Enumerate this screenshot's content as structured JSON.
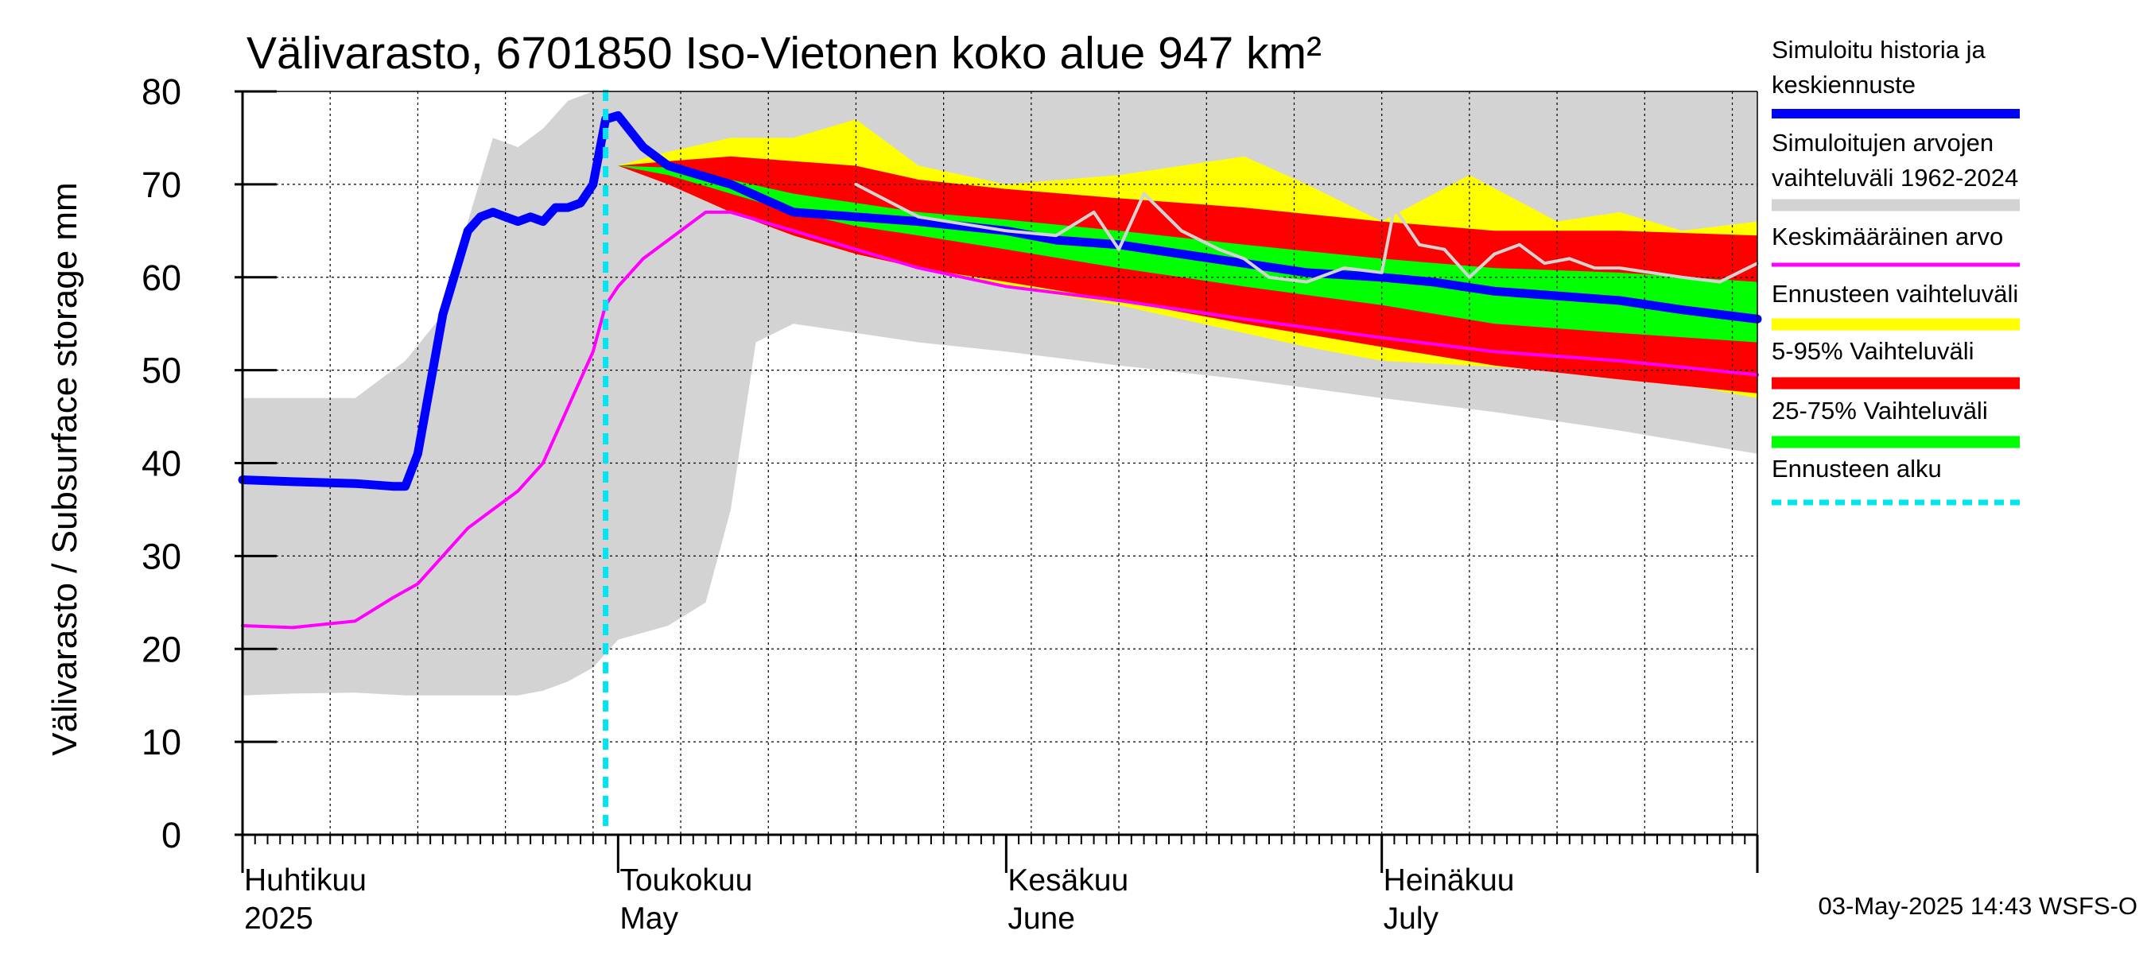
{
  "chart_data": {
    "type": "area",
    "title": "Välivarasto, 6701850 Iso-Vietonen koko alue 947 km²",
    "ylabel": "Välivarasto / Subsurface storage  mm",
    "ylim": [
      0,
      80
    ],
    "yticks": [
      0,
      10,
      20,
      30,
      40,
      50,
      60,
      70,
      80
    ],
    "xlim": [
      "2025-04-01",
      "2025-07-31"
    ],
    "grid": true,
    "legend_position": "right",
    "forecast_start": "2025-04-30",
    "x_month_labels": [
      {
        "date": "2025-04-01",
        "fi": "Huhtikuu",
        "en": "2025"
      },
      {
        "date": "2025-05-01",
        "fi": "Toukokuu",
        "en": "May"
      },
      {
        "date": "2025-06-01",
        "fi": "Kesäkuu",
        "en": "June"
      },
      {
        "date": "2025-07-01",
        "fi": "Heinäkuu",
        "en": "July"
      }
    ],
    "legend": [
      {
        "key": "sim",
        "label": [
          "Simuloitu historia ja",
          "keskiennuste"
        ],
        "color": "#0000ff",
        "style": "line"
      },
      {
        "key": "range",
        "label": [
          "Simuloitujen arvojen",
          "vaihteluväli 1962-2024"
        ],
        "color": "#d3d3d3",
        "style": "band"
      },
      {
        "key": "mean",
        "label": [
          "Keskimääräinen arvo"
        ],
        "color": "#ff00ff",
        "style": "thin"
      },
      {
        "key": "ens",
        "label": [
          "Ennusteen vaihteluväli"
        ],
        "color": "#ffff00",
        "style": "band"
      },
      {
        "key": "p5_95",
        "label": [
          "5-95% Vaihteluväli"
        ],
        "color": "#ff0000",
        "style": "band"
      },
      {
        "key": "p25_75",
        "label": [
          "25-75% Vaihteluväli"
        ],
        "color": "#00ff00",
        "style": "band"
      },
      {
        "key": "fstart",
        "label": [
          "Ennusteen alku"
        ],
        "color": "#00e5ee",
        "style": "dashed"
      }
    ],
    "series": [
      {
        "name": "Simuloitujen arvojen vaihteluväli 1962-2024",
        "kind": "band",
        "x": [
          "2025-04-01",
          "2025-04-05",
          "2025-04-10",
          "2025-04-14",
          "2025-04-17",
          "2025-04-19",
          "2025-04-21",
          "2025-04-23",
          "2025-04-25",
          "2025-04-27",
          "2025-04-29",
          "2025-05-01",
          "2025-05-05",
          "2025-05-08",
          "2025-05-10",
          "2025-05-12",
          "2025-05-15",
          "2025-05-20",
          "2025-05-25",
          "2025-06-01",
          "2025-06-10",
          "2025-06-20",
          "2025-07-01",
          "2025-07-10",
          "2025-07-20",
          "2025-07-31"
        ],
        "low": [
          15,
          15.2,
          15.3,
          15,
          15,
          15,
          15,
          15,
          15.5,
          16.5,
          18,
          21,
          22.5,
          25,
          35,
          53,
          55,
          54,
          53,
          52,
          50.5,
          49,
          47,
          45.5,
          43.5,
          41
        ],
        "high": [
          47,
          47,
          47,
          51,
          56,
          66,
          75,
          74,
          76,
          79,
          80,
          80,
          80,
          80,
          80,
          80,
          80,
          80,
          80,
          80,
          80,
          80,
          80,
          80,
          80,
          80
        ]
      },
      {
        "name": "Ennusteen vaihteluväli",
        "kind": "band",
        "x": [
          "2025-05-01",
          "2025-05-05",
          "2025-05-10",
          "2025-05-15",
          "2025-05-20",
          "2025-05-25",
          "2025-06-01",
          "2025-06-10",
          "2025-06-20",
          "2025-06-25",
          "2025-07-01",
          "2025-07-08",
          "2025-07-15",
          "2025-07-20",
          "2025-07-25",
          "2025-07-31"
        ],
        "low": [
          72,
          70.5,
          67,
          64.5,
          62.5,
          61,
          59,
          57,
          54,
          52.5,
          51,
          50.5,
          50,
          49.5,
          48.5,
          47
        ],
        "high": [
          72,
          73.5,
          75,
          75,
          77,
          72,
          70,
          71,
          73,
          70,
          66,
          71,
          66,
          67,
          65,
          66
        ]
      },
      {
        "name": "5-95% Vaihteluväli",
        "kind": "band",
        "x": [
          "2025-05-01",
          "2025-05-05",
          "2025-05-10",
          "2025-05-15",
          "2025-05-20",
          "2025-05-25",
          "2025-06-01",
          "2025-06-10",
          "2025-06-20",
          "2025-07-01",
          "2025-07-10",
          "2025-07-20",
          "2025-07-31"
        ],
        "low": [
          72,
          70,
          67,
          64.5,
          62.5,
          61,
          59.5,
          57.5,
          55,
          52.5,
          50.5,
          49,
          47.5
        ],
        "high": [
          72,
          72.5,
          73,
          72.5,
          72,
          70.5,
          69.5,
          68.5,
          67.5,
          66,
          65,
          65,
          64.5
        ]
      },
      {
        "name": "25-75% Vaihteluväli",
        "kind": "band",
        "x": [
          "2025-05-01",
          "2025-05-05",
          "2025-05-10",
          "2025-05-15",
          "2025-05-20",
          "2025-05-25",
          "2025-06-01",
          "2025-06-10",
          "2025-06-20",
          "2025-07-01",
          "2025-07-10",
          "2025-07-20",
          "2025-07-31"
        ],
        "low": [
          72,
          71,
          69,
          67,
          65.5,
          64.5,
          63,
          61,
          59,
          57,
          55,
          54,
          53
        ],
        "high": [
          72,
          71.8,
          70.5,
          69,
          68,
          67,
          66.2,
          65,
          63.5,
          62,
          61,
          60.5,
          59.5
        ]
      },
      {
        "name": "Simuloitu historia ja keskiennuste",
        "kind": "line",
        "color": "#0000ff",
        "x": [
          "2025-04-01",
          "2025-04-05",
          "2025-04-10",
          "2025-04-13",
          "2025-04-14",
          "2025-04-15",
          "2025-04-17",
          "2025-04-19",
          "2025-04-20",
          "2025-04-21",
          "2025-04-22",
          "2025-04-23",
          "2025-04-24",
          "2025-04-25",
          "2025-04-26",
          "2025-04-27",
          "2025-04-28",
          "2025-04-29",
          "2025-04-30",
          "2025-05-01",
          "2025-05-03",
          "2025-05-05",
          "2025-05-10",
          "2025-05-15",
          "2025-05-20",
          "2025-05-25",
          "2025-06-01",
          "2025-06-05",
          "2025-06-10",
          "2025-06-15",
          "2025-06-20",
          "2025-06-25",
          "2025-07-01",
          "2025-07-05",
          "2025-07-10",
          "2025-07-15",
          "2025-07-20",
          "2025-07-25",
          "2025-07-31"
        ],
        "y": [
          38.2,
          38,
          37.8,
          37.5,
          37.5,
          41,
          56,
          65,
          66.5,
          67,
          66.5,
          66,
          66.5,
          66,
          67.5,
          67.5,
          68,
          70,
          77,
          77.4,
          74,
          72,
          70,
          67,
          66.5,
          66,
          65,
          64,
          63.5,
          62.5,
          61.5,
          60.5,
          60,
          59.5,
          58.5,
          58,
          57.5,
          56.5,
          55.5
        ]
      },
      {
        "name": "Keskimääräinen arvo",
        "kind": "line",
        "color": "#ff00ff",
        "x": [
          "2025-04-01",
          "2025-04-05",
          "2025-04-10",
          "2025-04-13",
          "2025-04-15",
          "2025-04-17",
          "2025-04-19",
          "2025-04-21",
          "2025-04-23",
          "2025-04-25",
          "2025-04-27",
          "2025-04-29",
          "2025-04-30",
          "2025-05-01",
          "2025-05-03",
          "2025-05-05",
          "2025-05-08",
          "2025-05-10",
          "2025-05-15",
          "2025-05-20",
          "2025-05-25",
          "2025-06-01",
          "2025-06-10",
          "2025-06-20",
          "2025-07-01",
          "2025-07-10",
          "2025-07-20",
          "2025-07-31"
        ],
        "y": [
          22.5,
          22.3,
          23,
          25.5,
          27,
          30,
          33,
          35,
          37,
          40,
          46,
          52,
          57,
          59,
          62,
          64,
          67,
          67,
          65,
          63,
          61,
          59,
          57.5,
          55.5,
          53.5,
          52,
          51,
          49.5
        ]
      },
      {
        "name": "Historical reference (grey line)",
        "kind": "line",
        "color": "#d3d3d3",
        "x": [
          "2025-05-20",
          "2025-05-25",
          "2025-06-01",
          "2025-06-05",
          "2025-06-08",
          "2025-06-10",
          "2025-06-12",
          "2025-06-15",
          "2025-06-18",
          "2025-06-20",
          "2025-06-22",
          "2025-06-25",
          "2025-06-28",
          "2025-07-01",
          "2025-07-02",
          "2025-07-04",
          "2025-07-06",
          "2025-07-08",
          "2025-07-10",
          "2025-07-12",
          "2025-07-14",
          "2025-07-16",
          "2025-07-18",
          "2025-07-20",
          "2025-07-25",
          "2025-07-28",
          "2025-07-31"
        ],
        "y": [
          70,
          66.5,
          65,
          64.5,
          67,
          63,
          69,
          65,
          63,
          62,
          60,
          59.5,
          61,
          60.5,
          67.5,
          63.5,
          63,
          60,
          62.5,
          63.5,
          61.5,
          62,
          61,
          61,
          60,
          59.5,
          61.5
        ]
      }
    ]
  },
  "footer": {
    "timestamp": "03-May-2025 14:43 WSFS-O"
  }
}
